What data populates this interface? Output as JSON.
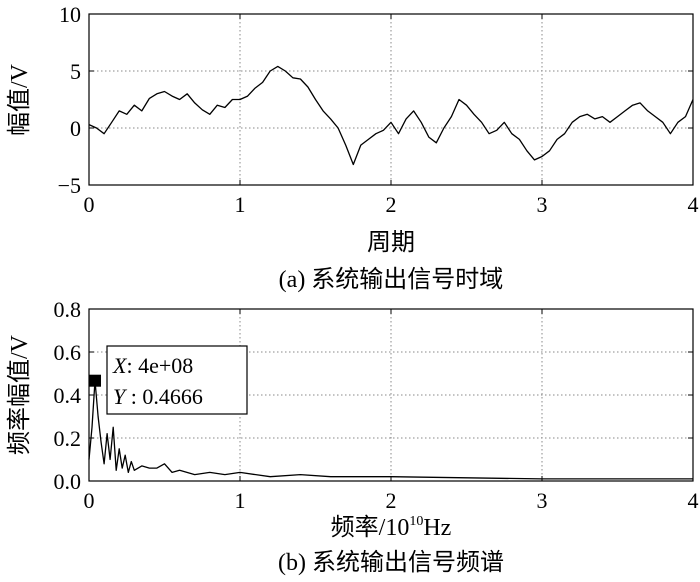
{
  "chart_data": [
    {
      "type": "line",
      "xlabel": "周期",
      "ylabel": "幅值/V",
      "caption": "(a) 系统输出信号时域",
      "xlim": [
        0,
        4
      ],
      "ylim": [
        -5,
        10
      ],
      "xticks": [
        "0",
        "1",
        "2",
        "3",
        "4"
      ],
      "yticks": [
        "−5",
        "0",
        "5",
        "10"
      ],
      "grid": true,
      "series": [
        {
          "x": [
            0,
            0.05,
            0.1,
            0.15,
            0.2,
            0.25,
            0.3,
            0.35,
            0.4,
            0.45,
            0.5,
            0.55,
            0.6,
            0.65,
            0.7,
            0.75,
            0.8,
            0.85,
            0.9,
            0.95,
            1.0,
            1.05,
            1.1,
            1.15,
            1.2,
            1.25,
            1.3,
            1.35,
            1.4,
            1.45,
            1.5,
            1.55,
            1.6,
            1.65,
            1.7,
            1.75,
            1.8,
            1.85,
            1.9,
            1.95,
            2.0,
            2.05,
            2.1,
            2.15,
            2.2,
            2.25,
            2.3,
            2.35,
            2.4,
            2.45,
            2.5,
            2.55,
            2.6,
            2.65,
            2.7,
            2.75,
            2.8,
            2.85,
            2.9,
            2.95,
            3.0,
            3.05,
            3.1,
            3.15,
            3.2,
            3.25,
            3.3,
            3.35,
            3.4,
            3.45,
            3.5,
            3.55,
            3.6,
            3.65,
            3.7,
            3.75,
            3.8,
            3.85,
            3.9,
            3.95,
            4.0
          ],
          "y": [
            0.3,
            0.0,
            -0.5,
            0.5,
            1.5,
            1.2,
            2.0,
            1.5,
            2.6,
            3.0,
            3.2,
            2.8,
            2.5,
            3.0,
            2.2,
            1.6,
            1.2,
            2.0,
            1.8,
            2.5,
            2.5,
            2.8,
            3.5,
            4.0,
            5.0,
            5.4,
            5.0,
            4.4,
            4.3,
            3.6,
            2.5,
            1.5,
            0.8,
            0.0,
            -1.5,
            -3.2,
            -1.5,
            -1.0,
            -0.5,
            -0.2,
            0.5,
            -0.5,
            0.8,
            1.5,
            0.5,
            -0.8,
            -1.3,
            0.0,
            1.0,
            2.5,
            2.0,
            1.2,
            0.5,
            -0.5,
            -0.2,
            0.5,
            -0.5,
            -1.0,
            -2.0,
            -2.8,
            -2.5,
            -2.0,
            -1.0,
            -0.5,
            0.5,
            1.0,
            1.2,
            0.8,
            1.0,
            0.5,
            1.0,
            1.5,
            2.0,
            2.2,
            1.5,
            1.0,
            0.5,
            -0.5,
            0.5,
            1.0,
            2.5
          ]
        }
      ]
    },
    {
      "type": "line",
      "xlabel": "频率/10",
      "xlabel_exponent": "10",
      "xlabel_unit": "Hz",
      "ylabel": "频率幅值/V",
      "caption": "(b) 系统输出信号频谱",
      "xlim": [
        0,
        4
      ],
      "ylim": [
        0,
        0.8
      ],
      "xticks": [
        "0",
        "1",
        "2",
        "3",
        "4"
      ],
      "yticks": [
        "0.0",
        "0.2",
        "0.4",
        "0.6",
        "0.8"
      ],
      "grid": true,
      "datatip": {
        "x": 0.04,
        "y": 0.4666,
        "x_text": "4e+08",
        "y_text": "0.4666",
        "x_label": "X",
        "y_label": "Y"
      },
      "series": [
        {
          "x": [
            0,
            0.02,
            0.04,
            0.06,
            0.08,
            0.1,
            0.12,
            0.14,
            0.16,
            0.18,
            0.2,
            0.22,
            0.24,
            0.26,
            0.28,
            0.3,
            0.35,
            0.4,
            0.45,
            0.5,
            0.55,
            0.6,
            0.7,
            0.8,
            0.9,
            1.0,
            1.2,
            1.4,
            1.6,
            1.8,
            2.0,
            2.5,
            3.0,
            3.5,
            4.0
          ],
          "y": [
            0.1,
            0.25,
            0.4666,
            0.3,
            0.18,
            0.08,
            0.22,
            0.1,
            0.25,
            0.05,
            0.15,
            0.06,
            0.12,
            0.04,
            0.09,
            0.05,
            0.07,
            0.06,
            0.06,
            0.08,
            0.04,
            0.05,
            0.03,
            0.04,
            0.03,
            0.04,
            0.02,
            0.03,
            0.02,
            0.02,
            0.02,
            0.015,
            0.01,
            0.01,
            0.01
          ]
        }
      ]
    }
  ]
}
